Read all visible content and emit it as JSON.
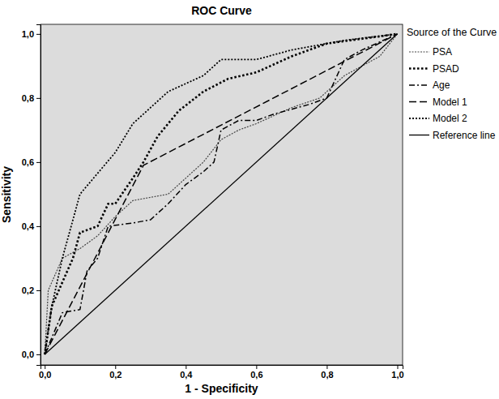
{
  "chart_data": {
    "type": "line",
    "title": "ROC Curve",
    "x_label": "1 - Specificity",
    "y_label": "Sensitivity",
    "legend": "right",
    "legend_title": "Source of the Curve",
    "xlim": [
      -0.012,
      1.015
    ],
    "ylim": [
      -0.033,
      1.03
    ],
    "xticks": [
      {
        "value": 0,
        "label": "0,0"
      },
      {
        "value": 0.2,
        "label": "0,2"
      },
      {
        "value": 0.4,
        "label": "0,4"
      },
      {
        "value": 0.6,
        "label": "0,6"
      },
      {
        "value": 0.8,
        "label": "0,8"
      },
      {
        "value": 1,
        "label": "1,0"
      }
    ],
    "yticks": [
      {
        "value": 0,
        "label": "0,0"
      },
      {
        "value": 0.2,
        "label": "0,2"
      },
      {
        "value": 0.4,
        "label": "0,4"
      },
      {
        "value": 0.6,
        "label": "0,6"
      },
      {
        "value": 0.8,
        "label": "0,8"
      },
      {
        "value": 1,
        "label": "1,0"
      }
    ],
    "series": [
      {
        "name": "PSA",
        "color": "#444444",
        "line_style": "dotted-fine",
        "x": [
          0,
          0.01,
          0.05,
          0.1,
          0.15,
          0.2,
          0.25,
          0.35,
          0.4,
          0.45,
          0.5,
          0.55,
          0.6,
          0.7,
          0.78,
          0.85,
          0.95,
          1
        ],
        "values": [
          0,
          0.2,
          0.3,
          0.33,
          0.37,
          0.43,
          0.48,
          0.5,
          0.55,
          0.6,
          0.67,
          0.7,
          0.72,
          0.77,
          0.8,
          0.87,
          0.93,
          1
        ]
      },
      {
        "name": "PSAD",
        "color": "#000000",
        "line_style": "dotted-heavy",
        "x": [
          0,
          0.02,
          0.08,
          0.1,
          0.15,
          0.18,
          0.2,
          0.25,
          0.28,
          0.32,
          0.38,
          0.45,
          0.52,
          0.6,
          0.7,
          0.8,
          1
        ],
        "values": [
          0,
          0.15,
          0.3,
          0.38,
          0.4,
          0.47,
          0.47,
          0.55,
          0.6,
          0.68,
          0.76,
          0.82,
          0.86,
          0.88,
          0.93,
          0.97,
          1
        ]
      },
      {
        "name": "Age",
        "color": "#000000",
        "line_style": "dash-dot",
        "x": [
          0,
          0.05,
          0.1,
          0.12,
          0.15,
          0.18,
          0.25,
          0.3,
          0.35,
          0.4,
          0.45,
          0.48,
          0.5,
          0.55,
          0.6,
          0.65,
          0.75,
          0.8,
          0.85,
          0.9,
          1
        ],
        "values": [
          0,
          0.13,
          0.14,
          0.26,
          0.3,
          0.4,
          0.41,
          0.42,
          0.47,
          0.53,
          0.57,
          0.6,
          0.7,
          0.73,
          0.73,
          0.75,
          0.78,
          0.8,
          0.92,
          0.95,
          1
        ]
      },
      {
        "name": "Model 1",
        "color": "#000000",
        "line_style": "dashed",
        "x": [
          0,
          0.28,
          1
        ],
        "values": [
          0,
          0.59,
          1
        ]
      },
      {
        "name": "Model 2",
        "color": "#000000",
        "line_style": "dotted",
        "x": [
          0,
          0.02,
          0.05,
          0.1,
          0.2,
          0.25,
          0.35,
          0.45,
          0.5,
          0.6,
          0.7,
          0.85,
          1
        ],
        "values": [
          0,
          0.15,
          0.3,
          0.5,
          0.63,
          0.72,
          0.82,
          0.87,
          0.92,
          0.92,
          0.95,
          0.98,
          1
        ]
      },
      {
        "name": "Reference line",
        "color": "#000000",
        "line_style": "solid",
        "x": [
          0,
          1
        ],
        "values": [
          0,
          1
        ]
      }
    ]
  }
}
